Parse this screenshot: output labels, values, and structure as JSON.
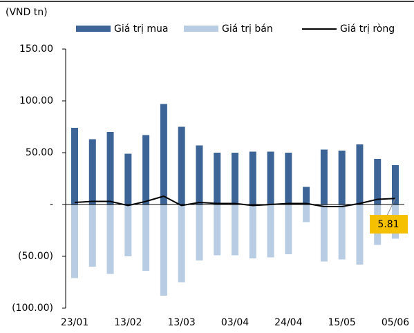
{
  "chart_data": {
    "type": "bar",
    "unit_label": "(VND tn)",
    "categories": [
      "23/01",
      null,
      null,
      "13/02",
      null,
      null,
      "13/03",
      null,
      null,
      "03/04",
      null,
      null,
      "24/04",
      null,
      null,
      "15/05",
      null,
      null,
      "05/06"
    ],
    "series": [
      {
        "name": "Giá trị mua",
        "color": "#3d6496",
        "type": "bar",
        "values": [
          74,
          63,
          70,
          49,
          67,
          97,
          75,
          57,
          50,
          50,
          51,
          51,
          50,
          17,
          53,
          52,
          58,
          44,
          38
        ]
      },
      {
        "name": "Giá trị bán",
        "color": "#b8cce4",
        "type": "bar",
        "values": [
          -71,
          -60,
          -67,
          -50,
          -64,
          -88,
          -75,
          -54,
          -49,
          -49,
          -52,
          -51,
          -48,
          -17,
          -55,
          -53,
          -58,
          -39,
          -33
        ]
      },
      {
        "name": "Giá trị ròng",
        "color": "#000000",
        "type": "line",
        "values": [
          2,
          3,
          3,
          -1,
          3,
          8,
          -1,
          2,
          1,
          1,
          -1,
          0,
          1,
          1,
          -2,
          -2,
          1,
          5,
          5.81
        ]
      }
    ],
    "ylim": [
      -100,
      150
    ],
    "yticks": [
      {
        "value": 150,
        "label": "150.00"
      },
      {
        "value": 100,
        "label": "100.00"
      },
      {
        "value": 50,
        "label": "50.00"
      },
      {
        "value": 0,
        "label": "-"
      },
      {
        "value": -50,
        "label": "(50.00)"
      },
      {
        "value": -100,
        "label": "(100.00)"
      }
    ],
    "callout_color": "#f5c000"
  }
}
